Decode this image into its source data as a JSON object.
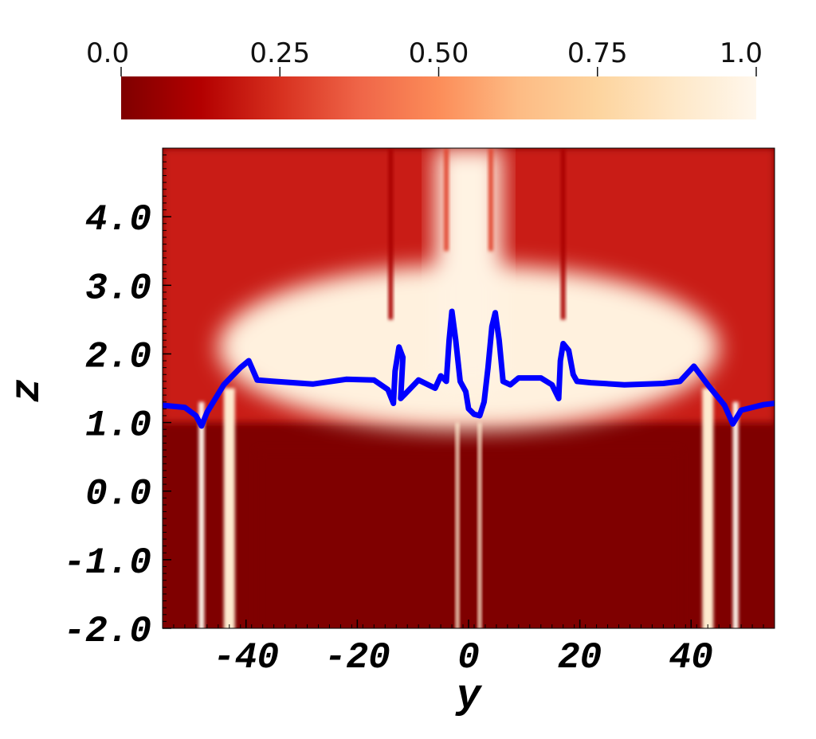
{
  "chart_data": {
    "type": "heatmap",
    "xlabel": "y",
    "ylabel": "z",
    "xlim": [
      -55,
      55
    ],
    "ylim": [
      -2.0,
      5.0
    ],
    "x_ticks": [
      {
        "value": -40,
        "label": "-40"
      },
      {
        "value": -20,
        "label": "-20"
      },
      {
        "value": 0,
        "label": "0"
      },
      {
        "value": 20,
        "label": "20"
      },
      {
        "value": 40,
        "label": "40"
      }
    ],
    "y_ticks": [
      {
        "value": -2.0,
        "label": "-2.0"
      },
      {
        "value": -1.0,
        "label": "-1.0"
      },
      {
        "value": 0.0,
        "label": "0.0"
      },
      {
        "value": 1.0,
        "label": "1.0"
      },
      {
        "value": 2.0,
        "label": "2.0"
      },
      {
        "value": 3.0,
        "label": "3.0"
      },
      {
        "value": 4.0,
        "label": "4.0"
      }
    ],
    "colorbar": {
      "range": [
        0.0,
        1.0
      ],
      "colormap": "OrRd_reversed",
      "orientation": "horizontal",
      "placement": "top",
      "ticks": [
        {
          "value": 0.0,
          "label": "0.0"
        },
        {
          "value": 0.25,
          "label": "0.25"
        },
        {
          "value": 0.5,
          "label": "0.50"
        },
        {
          "value": 0.75,
          "label": "0.75"
        },
        {
          "value": 1.0,
          "label": "1.0"
        }
      ],
      "stops": [
        {
          "value": 0.0,
          "color": "#7f0000"
        },
        {
          "value": 0.125,
          "color": "#b30000"
        },
        {
          "value": 0.25,
          "color": "#d7301f"
        },
        {
          "value": 0.375,
          "color": "#ef6548"
        },
        {
          "value": 0.5,
          "color": "#fc8d59"
        },
        {
          "value": 0.625,
          "color": "#fdbb84"
        },
        {
          "value": 0.75,
          "color": "#fdd49e"
        },
        {
          "value": 0.875,
          "color": "#fee8c8"
        },
        {
          "value": 1.0,
          "color": "#fff7ec"
        }
      ]
    },
    "field_regions": [
      {
        "kind": "background",
        "value": 0.0
      },
      {
        "kind": "upper_band",
        "z_range": [
          1.0,
          5.0
        ],
        "y_range": [
          -55,
          55
        ],
        "value": 0.2
      },
      {
        "kind": "bright_layer",
        "z_range": [
          0.9,
          3.3
        ],
        "y_range": [
          -45,
          45
        ],
        "value": 0.95
      },
      {
        "kind": "dark_core",
        "z_range": [
          -2.0,
          0.6
        ],
        "y_range": [
          -38,
          38
        ],
        "value": 0.0
      },
      {
        "kind": "streak",
        "y": -48,
        "z_range": [
          -2.0,
          1.3
        ],
        "width": 1.0,
        "value": 1.0
      },
      {
        "kind": "streak",
        "y": -43,
        "z_range": [
          -2.0,
          1.5
        ],
        "width": 2.0,
        "value": 0.9
      },
      {
        "kind": "streak",
        "y": -2,
        "z_range": [
          -2.0,
          1.0
        ],
        "width": 0.6,
        "value": 0.9
      },
      {
        "kind": "streak",
        "y": 2,
        "z_range": [
          -2.0,
          1.0
        ],
        "width": 0.6,
        "value": 0.9
      },
      {
        "kind": "streak",
        "y": 43,
        "z_range": [
          -2.0,
          1.5
        ],
        "width": 2.0,
        "value": 0.9
      },
      {
        "kind": "streak",
        "y": 48,
        "z_range": [
          -2.0,
          1.3
        ],
        "width": 1.0,
        "value": 1.0
      },
      {
        "kind": "central_plume",
        "y_range": [
          -6,
          6
        ],
        "z_range": [
          1.5,
          5.0
        ],
        "value": 0.97
      },
      {
        "kind": "dark_column",
        "y": -14,
        "z_range": [
          2.5,
          5.0
        ],
        "width": 0.8,
        "value": 0.1
      },
      {
        "kind": "dark_column",
        "y": 17,
        "z_range": [
          2.5,
          5.0
        ],
        "width": 0.8,
        "value": 0.1
      },
      {
        "kind": "dark_column",
        "y": -4,
        "z_range": [
          3.5,
          5.0
        ],
        "width": 0.8,
        "value": 0.3
      },
      {
        "kind": "dark_column",
        "y": 4,
        "z_range": [
          3.5,
          5.0
        ],
        "width": 0.8,
        "value": 0.3
      }
    ],
    "series": [
      {
        "type": "line",
        "color": "#0000ff",
        "points": [
          [
            -55,
            1.25
          ],
          [
            -51,
            1.22
          ],
          [
            -49,
            1.1
          ],
          [
            -48,
            0.95
          ],
          [
            -47,
            1.15
          ],
          [
            -44,
            1.55
          ],
          [
            -41,
            1.8
          ],
          [
            -39.5,
            1.9
          ],
          [
            -38,
            1.62
          ],
          [
            -35,
            1.6
          ],
          [
            -28,
            1.56
          ],
          [
            -22,
            1.63
          ],
          [
            -17,
            1.62
          ],
          [
            -14.5,
            1.48
          ],
          [
            -13.5,
            1.28
          ],
          [
            -13.2,
            1.75
          ],
          [
            -12.5,
            2.1
          ],
          [
            -11.8,
            1.95
          ],
          [
            -12.2,
            1.35
          ],
          [
            -11.0,
            1.45
          ],
          [
            -9,
            1.62
          ],
          [
            -6,
            1.5
          ],
          [
            -5,
            1.68
          ],
          [
            -4,
            1.6
          ],
          [
            -3.5,
            2.2
          ],
          [
            -3.0,
            2.62
          ],
          [
            -2.3,
            2.2
          ],
          [
            -1.5,
            1.6
          ],
          [
            -0.5,
            1.45
          ],
          [
            0.0,
            1.2
          ],
          [
            1.0,
            1.12
          ],
          [
            2.0,
            1.1
          ],
          [
            2.8,
            1.3
          ],
          [
            3.5,
            1.8
          ],
          [
            4.2,
            2.4
          ],
          [
            4.8,
            2.6
          ],
          [
            5.5,
            2.2
          ],
          [
            6.2,
            1.6
          ],
          [
            7.5,
            1.55
          ],
          [
            9,
            1.65
          ],
          [
            13,
            1.65
          ],
          [
            15,
            1.55
          ],
          [
            16.2,
            1.35
          ],
          [
            16.5,
            1.9
          ],
          [
            17,
            2.15
          ],
          [
            18,
            2.05
          ],
          [
            18.8,
            1.7
          ],
          [
            19.5,
            1.6
          ],
          [
            22,
            1.58
          ],
          [
            28,
            1.55
          ],
          [
            35,
            1.57
          ],
          [
            38,
            1.6
          ],
          [
            40.5,
            1.82
          ],
          [
            43,
            1.55
          ],
          [
            46,
            1.25
          ],
          [
            47.5,
            0.98
          ],
          [
            49,
            1.18
          ],
          [
            51,
            1.22
          ],
          [
            53,
            1.26
          ],
          [
            55,
            1.28
          ]
        ]
      }
    ]
  }
}
